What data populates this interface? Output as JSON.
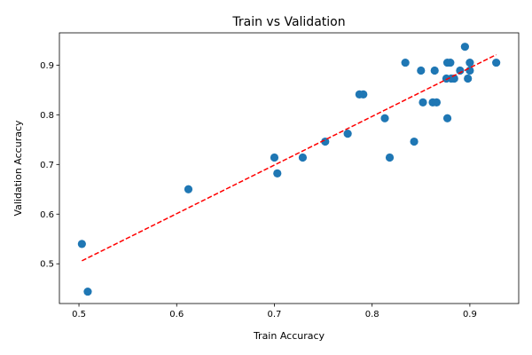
{
  "chart_data": {
    "type": "scatter",
    "title": "Train vs Validation",
    "xlabel": "Train Accuracy",
    "ylabel": "Validation Accuracy",
    "xlim": [
      0.48,
      0.95
    ],
    "ylim": [
      0.42,
      0.965
    ],
    "xticks": [
      0.5,
      0.6,
      0.7,
      0.8,
      0.9
    ],
    "xtick_labels": [
      "0.5",
      "0.6",
      "0.7",
      "0.8",
      "0.9"
    ],
    "yticks": [
      0.5,
      0.6,
      0.7,
      0.8,
      0.9
    ],
    "ytick_labels": [
      "0.5",
      "0.6",
      "0.7",
      "0.8",
      "0.9"
    ],
    "grid": false,
    "point_color": "#1f77b4",
    "fit_color": "#ff0000",
    "points": [
      {
        "x": 0.503,
        "y": 0.54
      },
      {
        "x": 0.509,
        "y": 0.444
      },
      {
        "x": 0.612,
        "y": 0.65
      },
      {
        "x": 0.7,
        "y": 0.714
      },
      {
        "x": 0.703,
        "y": 0.682
      },
      {
        "x": 0.729,
        "y": 0.714
      },
      {
        "x": 0.752,
        "y": 0.746
      },
      {
        "x": 0.775,
        "y": 0.762
      },
      {
        "x": 0.787,
        "y": 0.841
      },
      {
        "x": 0.791,
        "y": 0.841
      },
      {
        "x": 0.813,
        "y": 0.793
      },
      {
        "x": 0.818,
        "y": 0.714
      },
      {
        "x": 0.834,
        "y": 0.905
      },
      {
        "x": 0.843,
        "y": 0.746
      },
      {
        "x": 0.85,
        "y": 0.889
      },
      {
        "x": 0.852,
        "y": 0.825
      },
      {
        "x": 0.862,
        "y": 0.825
      },
      {
        "x": 0.864,
        "y": 0.889
      },
      {
        "x": 0.866,
        "y": 0.825
      },
      {
        "x": 0.876,
        "y": 0.873
      },
      {
        "x": 0.877,
        "y": 0.793
      },
      {
        "x": 0.877,
        "y": 0.905
      },
      {
        "x": 0.88,
        "y": 0.905
      },
      {
        "x": 0.881,
        "y": 0.873
      },
      {
        "x": 0.884,
        "y": 0.873
      },
      {
        "x": 0.89,
        "y": 0.889
      },
      {
        "x": 0.895,
        "y": 0.937
      },
      {
        "x": 0.898,
        "y": 0.873
      },
      {
        "x": 0.9,
        "y": 0.889
      },
      {
        "x": 0.9,
        "y": 0.905
      },
      {
        "x": 0.927,
        "y": 0.905
      }
    ],
    "fit_line": {
      "x": [
        0.503,
        0.927
      ],
      "y": [
        0.506,
        0.921
      ]
    }
  }
}
